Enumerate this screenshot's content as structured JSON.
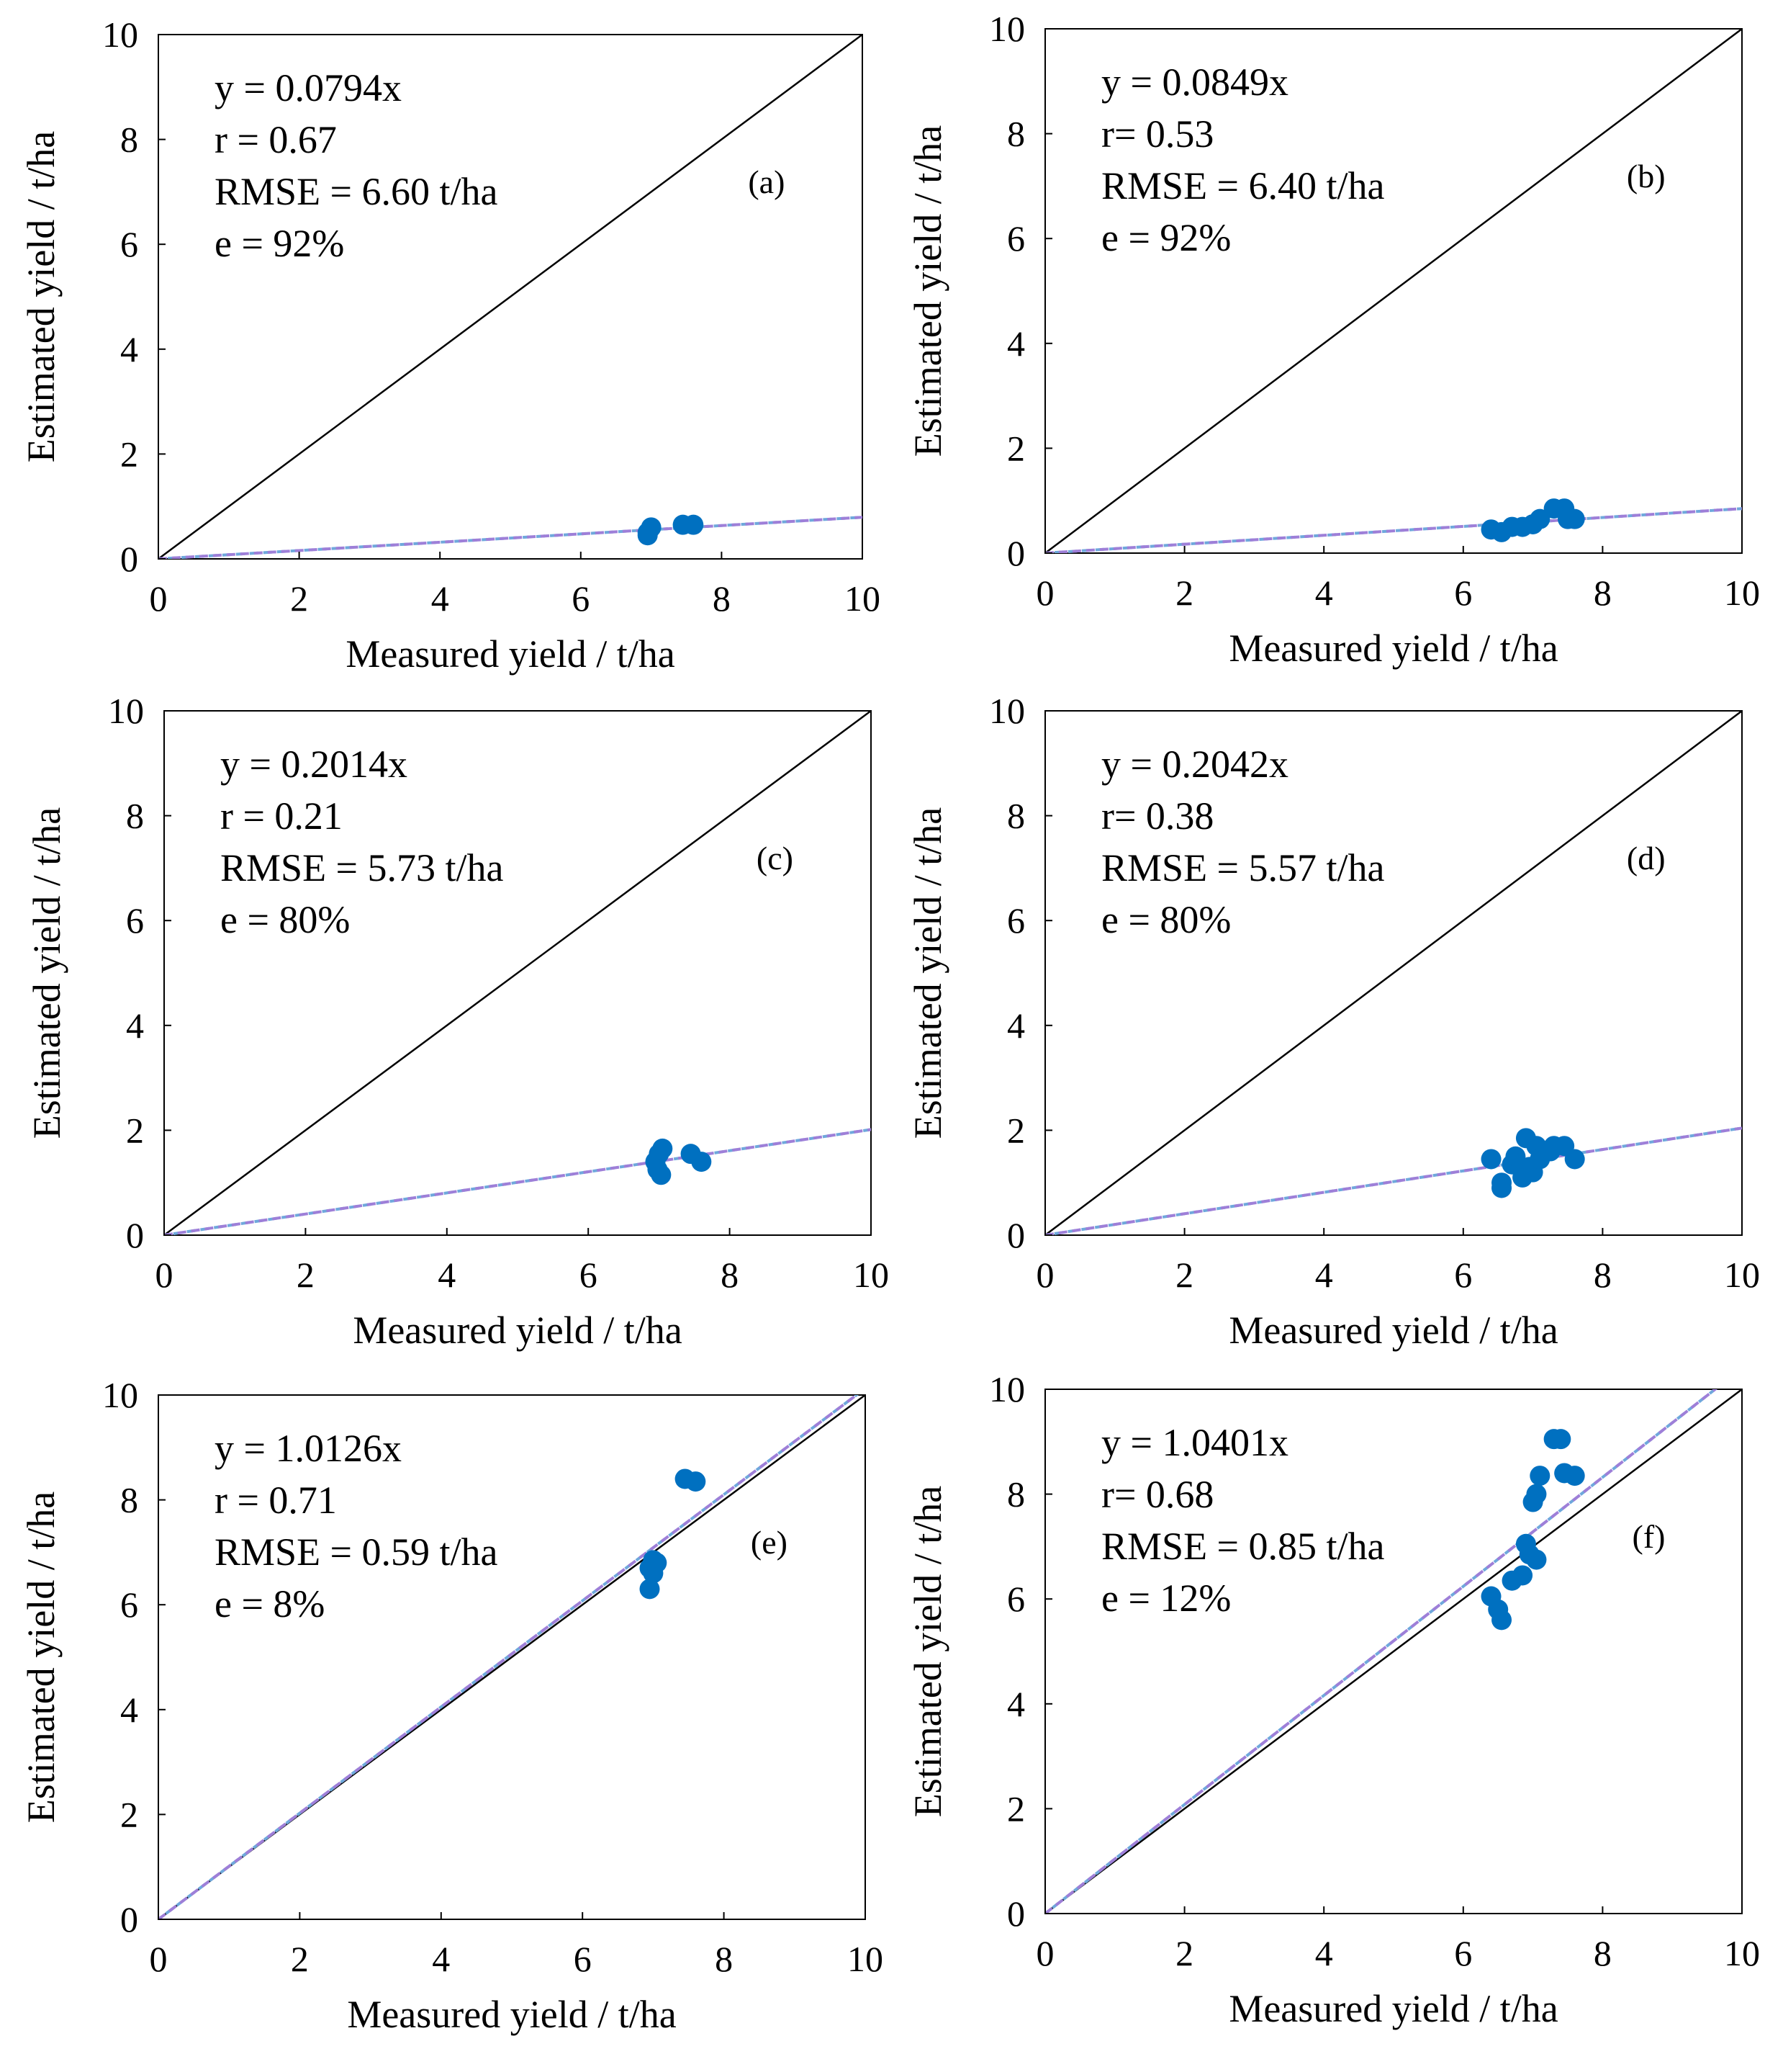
{
  "chart_data": [
    {
      "type": "scatter",
      "panel_label": "(a)",
      "xlabel": "Measured yield / t/ha",
      "ylabel": "Estimated yield / t/ha",
      "xlim": [
        0,
        10
      ],
      "ylim": [
        0,
        10
      ],
      "xticks": [
        0,
        2,
        4,
        6,
        8,
        10
      ],
      "yticks": [
        0,
        2,
        4,
        6,
        8,
        10
      ],
      "annotations": [
        "y = 0.0794x",
        "r = 0.67",
        "RMSE = 6.60 t/ha",
        "e = 92%"
      ],
      "fit_slope": 0.0794,
      "points": [
        [
          6.95,
          0.5
        ],
        [
          7.0,
          0.6
        ],
        [
          6.95,
          0.45
        ],
        [
          7.45,
          0.65
        ],
        [
          7.6,
          0.65
        ]
      ]
    },
    {
      "type": "scatter",
      "panel_label": "(b)",
      "xlabel": "Measured yield / t/ha",
      "ylabel": "Estimated yield / t/ha",
      "xlim": [
        0,
        10
      ],
      "ylim": [
        0,
        10
      ],
      "xticks": [
        0,
        2,
        4,
        6,
        8,
        10
      ],
      "yticks": [
        0,
        2,
        4,
        6,
        8,
        10
      ],
      "annotations": [
        "y = 0.0849x",
        "r= 0.53",
        "RMSE = 6.40 t/ha",
        "e = 92%"
      ],
      "fit_slope": 0.0849,
      "points": [
        [
          6.4,
          0.45
        ],
        [
          6.55,
          0.4
        ],
        [
          6.7,
          0.5
        ],
        [
          6.85,
          0.5
        ],
        [
          7.0,
          0.55
        ],
        [
          7.1,
          0.65
        ],
        [
          7.3,
          0.85
        ],
        [
          7.45,
          0.85
        ],
        [
          7.5,
          0.65
        ],
        [
          7.6,
          0.65
        ]
      ]
    },
    {
      "type": "scatter",
      "panel_label": "(c)",
      "xlabel": "Measured yield / t/ha",
      "ylabel": "Estimated yield / t/ha",
      "xlim": [
        0,
        10
      ],
      "ylim": [
        0,
        10
      ],
      "xticks": [
        0,
        2,
        4,
        6,
        8,
        10
      ],
      "yticks": [
        0,
        2,
        4,
        6,
        8,
        10
      ],
      "annotations": [
        "y = 0.2014x",
        "r = 0.21",
        "RMSE = 5.73 t/ha",
        "e = 80%"
      ],
      "fit_slope": 0.2014,
      "points": [
        [
          6.95,
          1.4
        ],
        [
          7.0,
          1.55
        ],
        [
          7.05,
          1.65
        ],
        [
          6.98,
          1.25
        ],
        [
          7.03,
          1.15
        ],
        [
          7.45,
          1.55
        ],
        [
          7.6,
          1.4
        ]
      ]
    },
    {
      "type": "scatter",
      "panel_label": "(d)",
      "xlabel": "Measured yield / t/ha",
      "ylabel": "Estimated yield / t/ha",
      "xlim": [
        0,
        10
      ],
      "ylim": [
        0,
        10
      ],
      "xticks": [
        0,
        2,
        4,
        6,
        8,
        10
      ],
      "yticks": [
        0,
        2,
        4,
        6,
        8,
        10
      ],
      "annotations": [
        "y = 0.2042x",
        "r= 0.38",
        "RMSE = 5.57 t/ha",
        "e = 80%"
      ],
      "fit_slope": 0.2042,
      "points": [
        [
          6.4,
          1.45
        ],
        [
          6.55,
          1.0
        ],
        [
          6.55,
          0.9
        ],
        [
          6.7,
          1.35
        ],
        [
          6.75,
          1.5
        ],
        [
          6.85,
          1.1
        ],
        [
          6.9,
          1.85
        ],
        [
          6.95,
          1.3
        ],
        [
          7.0,
          1.2
        ],
        [
          7.05,
          1.7
        ],
        [
          7.1,
          1.45
        ],
        [
          7.25,
          1.6
        ],
        [
          7.3,
          1.7
        ],
        [
          7.45,
          1.7
        ],
        [
          7.6,
          1.45
        ]
      ]
    },
    {
      "type": "scatter",
      "panel_label": "(e)",
      "xlabel": "Measured yield / t/ha",
      "ylabel": "Estimated yield / t/ha",
      "xlim": [
        0,
        10
      ],
      "ylim": [
        0,
        10
      ],
      "xticks": [
        0,
        2,
        4,
        6,
        8,
        10
      ],
      "yticks": [
        0,
        2,
        4,
        6,
        8,
        10
      ],
      "annotations": [
        "y = 1.0126x",
        "r = 0.71",
        "RMSE = 0.59 t/ha",
        "e = 8%"
      ],
      "fit_slope": 1.0126,
      "points": [
        [
          6.95,
          6.3
        ],
        [
          6.95,
          6.7
        ],
        [
          7.0,
          6.85
        ],
        [
          7.05,
          6.8
        ],
        [
          7.0,
          6.6
        ],
        [
          7.45,
          8.4
        ],
        [
          7.6,
          8.35
        ]
      ]
    },
    {
      "type": "scatter",
      "panel_label": "(f)",
      "xlabel": "Measured yield / t/ha",
      "ylabel": "Estimated yield / t/ha",
      "xlim": [
        0,
        10
      ],
      "ylim": [
        0,
        10
      ],
      "xticks": [
        0,
        2,
        4,
        6,
        8,
        10
      ],
      "yticks": [
        0,
        2,
        4,
        6,
        8,
        10
      ],
      "annotations": [
        "y = 1.0401x",
        "r= 0.68",
        "RMSE = 0.85 t/ha",
        "e = 12%"
      ],
      "fit_slope": 1.0401,
      "points": [
        [
          6.4,
          6.05
        ],
        [
          6.5,
          5.8
        ],
        [
          6.55,
          5.6
        ],
        [
          6.7,
          6.35
        ],
        [
          6.85,
          6.45
        ],
        [
          6.9,
          7.05
        ],
        [
          6.95,
          6.85
        ],
        [
          7.0,
          7.85
        ],
        [
          7.05,
          8.0
        ],
        [
          7.05,
          6.75
        ],
        [
          7.1,
          8.35
        ],
        [
          7.3,
          9.05
        ],
        [
          7.4,
          9.05
        ],
        [
          7.45,
          8.4
        ],
        [
          7.6,
          8.35
        ]
      ]
    }
  ],
  "colors": {
    "points": "#0070c0",
    "fit_line": "#9e7fd8",
    "fit_line_alt": "#6fa8dc",
    "one_to_one": "#000000"
  }
}
